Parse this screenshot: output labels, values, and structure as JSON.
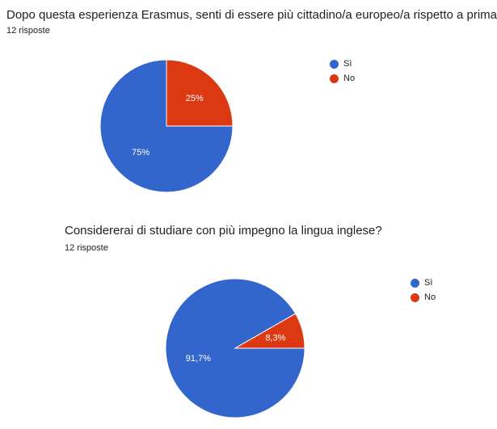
{
  "chart_data": [
    {
      "type": "pie",
      "title": "Dopo questa esperienza Erasmus, senti di essere più cittadino/a europeo/a rispetto a prima?",
      "subtitle": "12 risposte",
      "categories": [
        "Sì",
        "No"
      ],
      "values": [
        75,
        25
      ],
      "labels": [
        "75%",
        "25%"
      ],
      "colors": [
        "#3366cc",
        "#dc3912"
      ],
      "legend": "right"
    },
    {
      "type": "pie",
      "title": "Considererai di studiare con più impegno la lingua inglese?",
      "subtitle": "12 risposte",
      "categories": [
        "Sì",
        "No"
      ],
      "values": [
        91.7,
        8.3
      ],
      "labels": [
        "91,7%",
        "8,3%"
      ],
      "colors": [
        "#3366cc",
        "#dc3912"
      ],
      "legend": "right"
    }
  ]
}
